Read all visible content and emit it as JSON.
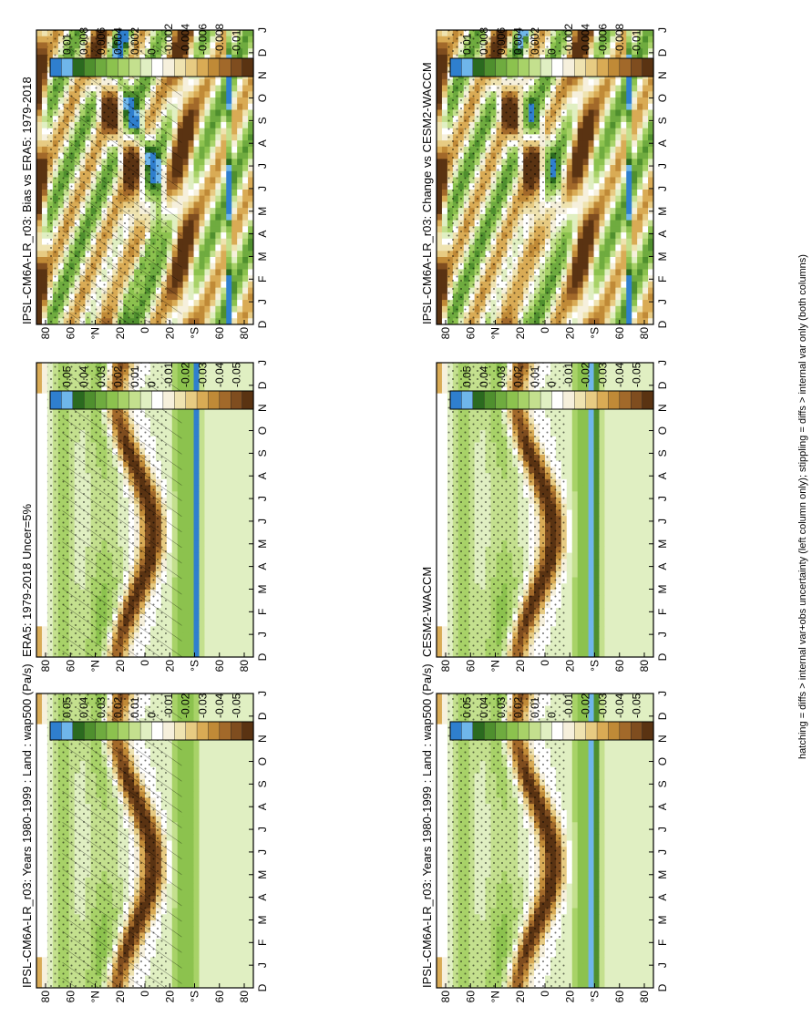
{
  "footnote": "hatching = diffs > internal var+obs uncertainty (left column only); stippling = diffs > internal var only (both columns)",
  "palette": [
    "#2f7fce",
    "#6fb6ea",
    "#2b6a1f",
    "#4f8f2e",
    "#6fab3f",
    "#8cc24e",
    "#a8d268",
    "#c4e08e",
    "#e0efc2",
    "#ffffff",
    "#f6f0dc",
    "#efe3b0",
    "#e7cb82",
    "#d9ab55",
    "#c08a37",
    "#a2692a",
    "#7f4d1f",
    "#5a3312"
  ],
  "months": [
    "D",
    "J",
    "F",
    "M",
    "A",
    "M",
    "J",
    "J",
    "A",
    "S",
    "O",
    "N",
    "D",
    "J"
  ],
  "lat_ticks": [
    "80",
    "60",
    "°N",
    "20",
    "0",
    "20",
    "°S",
    "60",
    "80"
  ],
  "chart_data": [
    {
      "type": "heatmap",
      "title": "IPSL-CM6A-LR_r03: Years 1980-1999 : Land : wap500 (Pa/s)",
      "colorbar": [
        "0.05",
        "0.04",
        "0.03",
        "0.02",
        "0.01",
        "0",
        "-0.01",
        "-0.02",
        "-0.03",
        "-0.04",
        "-0.05"
      ],
      "hatching": true,
      "stippling": true
    },
    {
      "type": "heatmap",
      "title": "IPSL-CM6A-LR_r03: Years 1980-1999 : Land : wap500 (Pa/s)",
      "colorbar": [
        "0.05",
        "0.04",
        "0.03",
        "0.02",
        "0.01",
        "0",
        "-0.01",
        "-0.02",
        "-0.03",
        "-0.04",
        "-0.05"
      ],
      "hatching": false,
      "stippling": true
    },
    {
      "type": "heatmap",
      "title": "ERA5: 1979-2018 Uncer=5%",
      "colorbar": [
        "0.05",
        "0.04",
        "0.03",
        "0.02",
        "0.01",
        "0",
        "-0.01",
        "-0.02",
        "-0.03",
        "-0.04",
        "-0.05"
      ],
      "hatching": true,
      "stippling": true
    },
    {
      "type": "heatmap",
      "title": "CESM2-WACCM",
      "colorbar": [
        "0.05",
        "0.04",
        "0.03",
        "0.02",
        "0.01",
        "0",
        "-0.01",
        "-0.02",
        "-0.03",
        "-0.04",
        "-0.05"
      ],
      "hatching": false,
      "stippling": true
    },
    {
      "type": "heatmap",
      "title": "IPSL-CM6A-LR_r03: Bias vs ERA5: 1979-2018",
      "colorbar": [
        "0.01",
        "0.008",
        "0.006",
        "0.004",
        "0.002",
        "0",
        "-0.002",
        "-0.004",
        "-0.006",
        "-0.008",
        "-0.01"
      ],
      "hatching": true,
      "stippling": true
    },
    {
      "type": "heatmap",
      "title": "IPSL-CM6A-LR_r03: Change vs CESM2-WACCM",
      "colorbar": [
        "0.01",
        "0.008",
        "0.006",
        "0.004",
        "0.002",
        "0",
        "-0.002",
        "-0.004",
        "-0.006",
        "-0.008",
        "-0.01"
      ],
      "hatching": false,
      "stippling": true
    }
  ]
}
